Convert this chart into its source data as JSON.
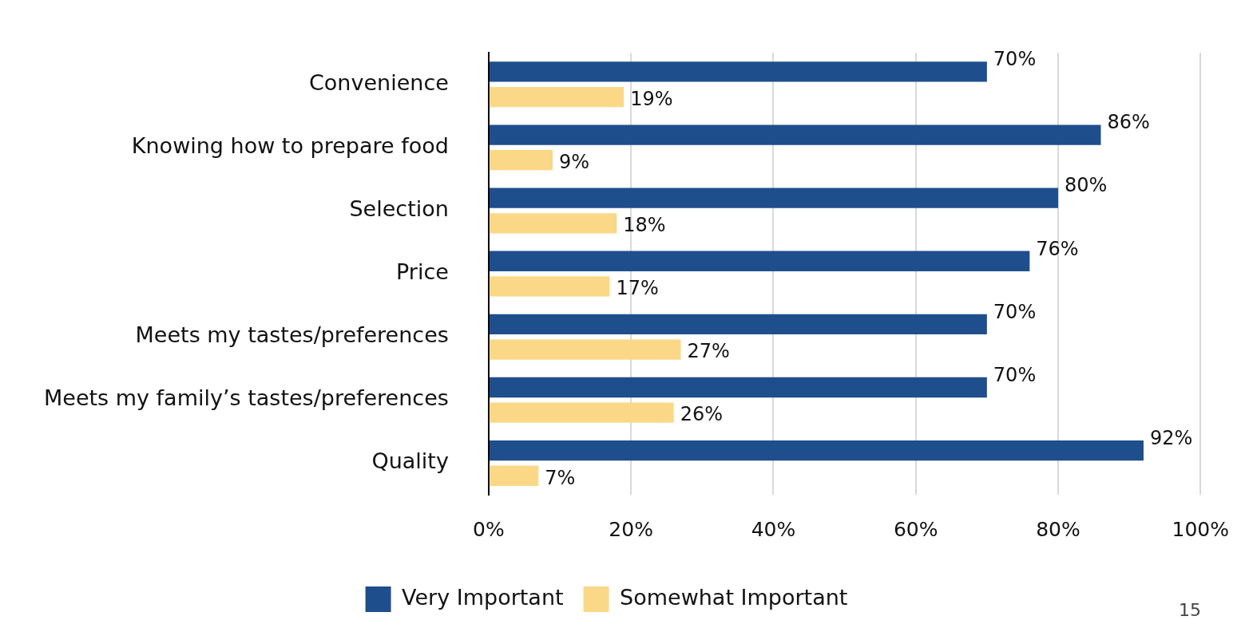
{
  "chart_data": {
    "type": "bar",
    "orientation": "horizontal",
    "categories": [
      "Convenience",
      "Knowing how to prepare food",
      "Selection",
      "Price",
      "Meets my tastes/preferences",
      "Meets my family’s tastes/preferences",
      "Quality"
    ],
    "series": [
      {
        "name": "Very Important",
        "color": "#1f4e8c",
        "values": [
          70,
          86,
          80,
          76,
          70,
          70,
          92
        ],
        "value_labels": [
          "70%",
          "86%",
          "80%",
          "76%",
          "70%",
          "70%",
          "92%"
        ]
      },
      {
        "name": "Somewhat Important",
        "color": "#fad887",
        "values": [
          19,
          9,
          18,
          17,
          27,
          26,
          7
        ],
        "value_labels": [
          "19%",
          "9%",
          "18%",
          "17%",
          "27%",
          "26%",
          "7%"
        ]
      }
    ],
    "xlim": [
      0,
      100
    ],
    "xticks": [
      {
        "value": 0,
        "label": "0%"
      },
      {
        "value": 20,
        "label": "20%"
      },
      {
        "value": 40,
        "label": "40%"
      },
      {
        "value": 60,
        "label": "60%"
      },
      {
        "value": 80,
        "label": "80%"
      },
      {
        "value": 100,
        "label": "100%"
      }
    ],
    "grid": "x",
    "legend": "bottom",
    "annotations": [
      "15"
    ]
  }
}
